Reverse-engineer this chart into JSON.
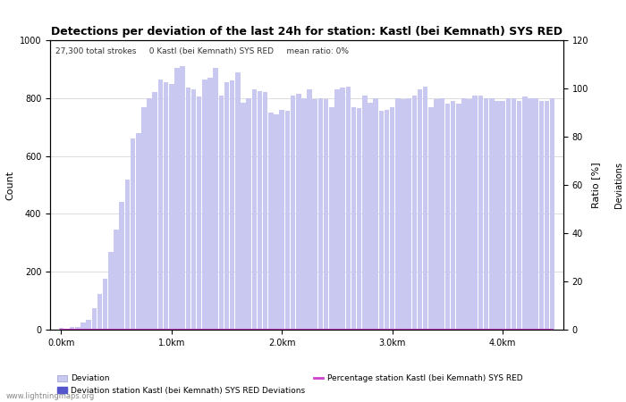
{
  "title": "Detections per deviation of the last 24h for station: Kastl (bei Kemnath) SYS RED",
  "subtitle": "27,300 total strokes     0 Kastl (bei Kemnath) SYS RED     mean ratio: 0%",
  "xlabel_ticks": [
    "0.0km",
    "1.0km",
    "2.0km",
    "3.0km",
    "4.0km"
  ],
  "xlabel_tick_positions": [
    0.0,
    1.0,
    2.0,
    3.0,
    4.0
  ],
  "ylabel_left": "Count",
  "ylabel_right": "Ratio [%]",
  "ylabel_right2": "Deviations",
  "ylim_left": [
    0,
    1000
  ],
  "ylim_right": [
    0,
    120
  ],
  "bar_width": 0.045,
  "bar_color_light": "#c8c8f0",
  "bar_color_dark": "#5555cc",
  "line_color": "#cc44cc",
  "background_color": "#ffffff",
  "grid_color": "#aaaaaa",
  "legend_labels": [
    "Deviation",
    "Deviation station Kastl (bei Kemnath) SYS RED Deviations",
    "Percentage station Kastl (bei Kemnath) SYS RED"
  ],
  "km_per_bar": 0.05,
  "deviation_values": [
    5,
    2,
    8,
    10,
    25,
    35,
    75,
    125,
    175,
    270,
    345,
    440,
    520,
    660,
    680,
    770,
    800,
    820,
    865,
    855,
    850,
    905,
    910,
    835,
    830,
    805,
    865,
    870,
    905,
    810,
    855,
    860,
    890,
    785,
    800,
    830,
    825,
    820,
    750,
    745,
    760,
    755,
    810,
    815,
    800,
    830,
    795,
    800,
    795,
    770,
    830,
    835,
    840,
    770,
    765,
    810,
    785,
    800,
    755,
    760,
    770,
    800,
    795,
    800,
    810,
    830,
    840,
    770,
    795,
    800,
    780,
    790,
    780,
    800,
    795,
    810,
    810,
    800,
    800,
    790,
    790,
    800,
    800,
    790,
    805,
    800,
    800,
    790,
    790,
    800
  ],
  "station_deviation_values": [
    0,
    0,
    0,
    0,
    0,
    0,
    0,
    0,
    0,
    0,
    0,
    0,
    0,
    0,
    0,
    0,
    0,
    0,
    0,
    0,
    0,
    0,
    0,
    0,
    0,
    0,
    0,
    0,
    0,
    0,
    0,
    0,
    0,
    0,
    0,
    0,
    0,
    0,
    0,
    0,
    0,
    0,
    0,
    0,
    0,
    0,
    0,
    0,
    0,
    0,
    0,
    0,
    0,
    0,
    0,
    0,
    0,
    0,
    0,
    0,
    0,
    0,
    0,
    0,
    0,
    0,
    0,
    0,
    0,
    0,
    0,
    0,
    0,
    0,
    0,
    0,
    0,
    0,
    0,
    0,
    0,
    0,
    0,
    0,
    0,
    0,
    0,
    0,
    0,
    0
  ],
  "percentage_values": [
    0,
    0,
    0,
    0,
    0,
    0,
    0,
    0,
    0,
    0,
    0,
    0,
    0,
    0,
    0,
    0,
    0,
    0,
    0,
    0,
    0,
    0,
    0,
    0,
    0,
    0,
    0,
    0,
    0,
    0,
    0,
    0,
    0,
    0,
    0,
    0,
    0,
    0,
    0,
    0,
    0,
    0,
    0,
    0,
    0,
    0,
    0,
    0,
    0,
    0,
    0,
    0,
    0,
    0,
    0,
    0,
    0,
    0,
    0,
    0,
    0,
    0,
    0,
    0,
    0,
    0,
    0,
    0,
    0,
    0,
    0,
    0,
    0,
    0,
    0,
    0,
    0,
    0,
    0,
    0,
    0,
    0,
    0,
    0,
    0,
    0,
    0,
    0,
    0,
    0
  ],
  "watermark": "www.lightningmaps.org"
}
